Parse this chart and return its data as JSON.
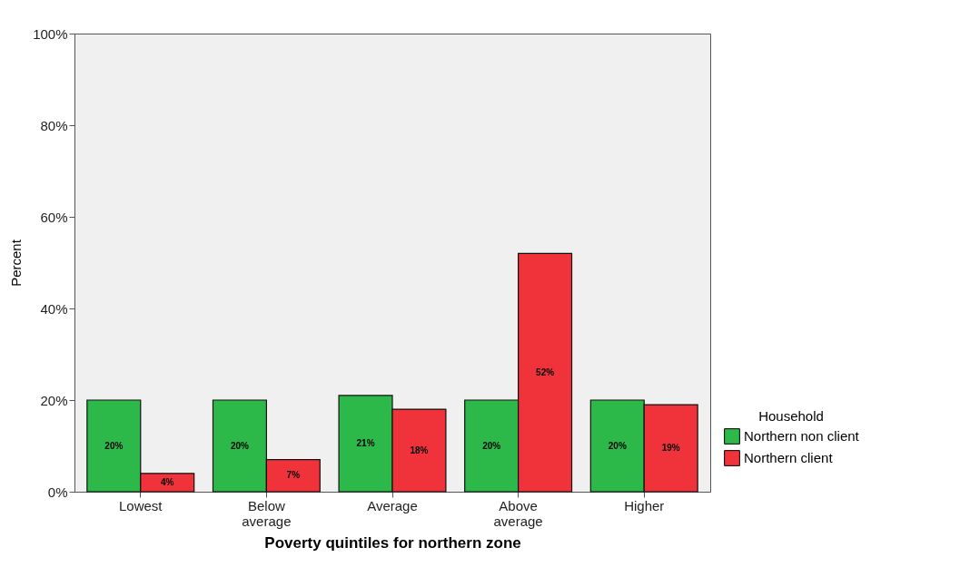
{
  "chart_data": {
    "type": "bar",
    "xlabel": "Poverty quintiles for northern zone",
    "ylabel": "Percent",
    "legend_title": "Household",
    "categories": [
      "Lowest",
      "Below average",
      "Average",
      "Above average",
      "Higher"
    ],
    "series": [
      {
        "name": "Northern non client",
        "color": "#2db84a",
        "values": [
          20,
          20,
          21,
          20,
          20
        ],
        "value_labels": [
          "20%",
          "20%",
          "21%",
          "20%",
          "20%"
        ]
      },
      {
        "name": "Northern client",
        "color": "#f0333a",
        "values": [
          4,
          7,
          18,
          52,
          19
        ],
        "value_labels": [
          "4%",
          "7%",
          "18%",
          "52%",
          "19%"
        ]
      }
    ],
    "ylim": [
      0,
      100
    ],
    "yticks": [
      {
        "value": 0,
        "label": "0%"
      },
      {
        "value": 20,
        "label": "20%"
      },
      {
        "value": 40,
        "label": "40%"
      },
      {
        "value": 60,
        "label": "60%"
      },
      {
        "value": 80,
        "label": "80%"
      },
      {
        "value": 100,
        "label": "100%"
      }
    ],
    "grid": false,
    "legend": "bottom right"
  }
}
